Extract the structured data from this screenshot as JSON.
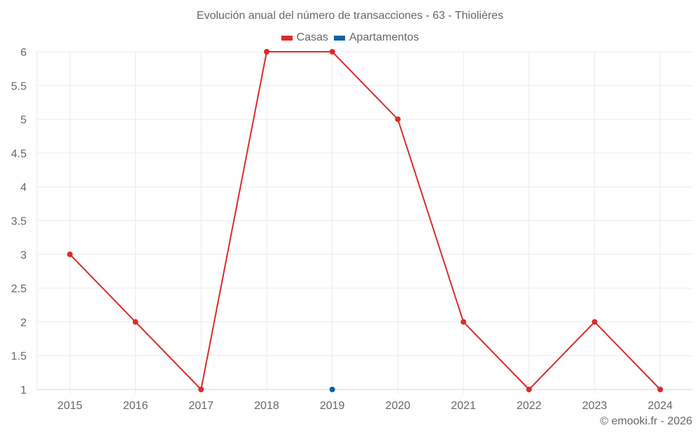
{
  "chart": {
    "title": "Evolución anual del número de transacciones - 63 - Thiolières",
    "credit": "© emooki.fr - 2026",
    "legend": [
      {
        "name": "Casas",
        "color": "#dc2a2a"
      },
      {
        "name": "Apartamentos",
        "color": "#0d62a0"
      }
    ],
    "grid_color": "#ebebeb",
    "axis_color": "#d6d6d6"
  },
  "chart_data": {
    "type": "line",
    "title": "Evolución anual del número de transacciones - 63 - Thiolières",
    "xlabel": "",
    "ylabel": "",
    "categories": [
      "2015",
      "2016",
      "2017",
      "2018",
      "2019",
      "2020",
      "2021",
      "2022",
      "2023",
      "2024"
    ],
    "series": [
      {
        "name": "Casas",
        "color": "#dc2a2a",
        "values": [
          3,
          2,
          1,
          6,
          6,
          5,
          2,
          1,
          2,
          1
        ]
      },
      {
        "name": "Apartamentos",
        "color": "#0d62a0",
        "values": [
          null,
          null,
          null,
          null,
          1,
          null,
          null,
          null,
          null,
          null
        ]
      }
    ],
    "ylim": [
      1,
      6
    ],
    "yticks": [
      "1",
      "1.5",
      "2",
      "2.5",
      "3",
      "3.5",
      "4",
      "4.5",
      "5",
      "5.5",
      "6"
    ],
    "grid": true,
    "legend_position": "top"
  }
}
